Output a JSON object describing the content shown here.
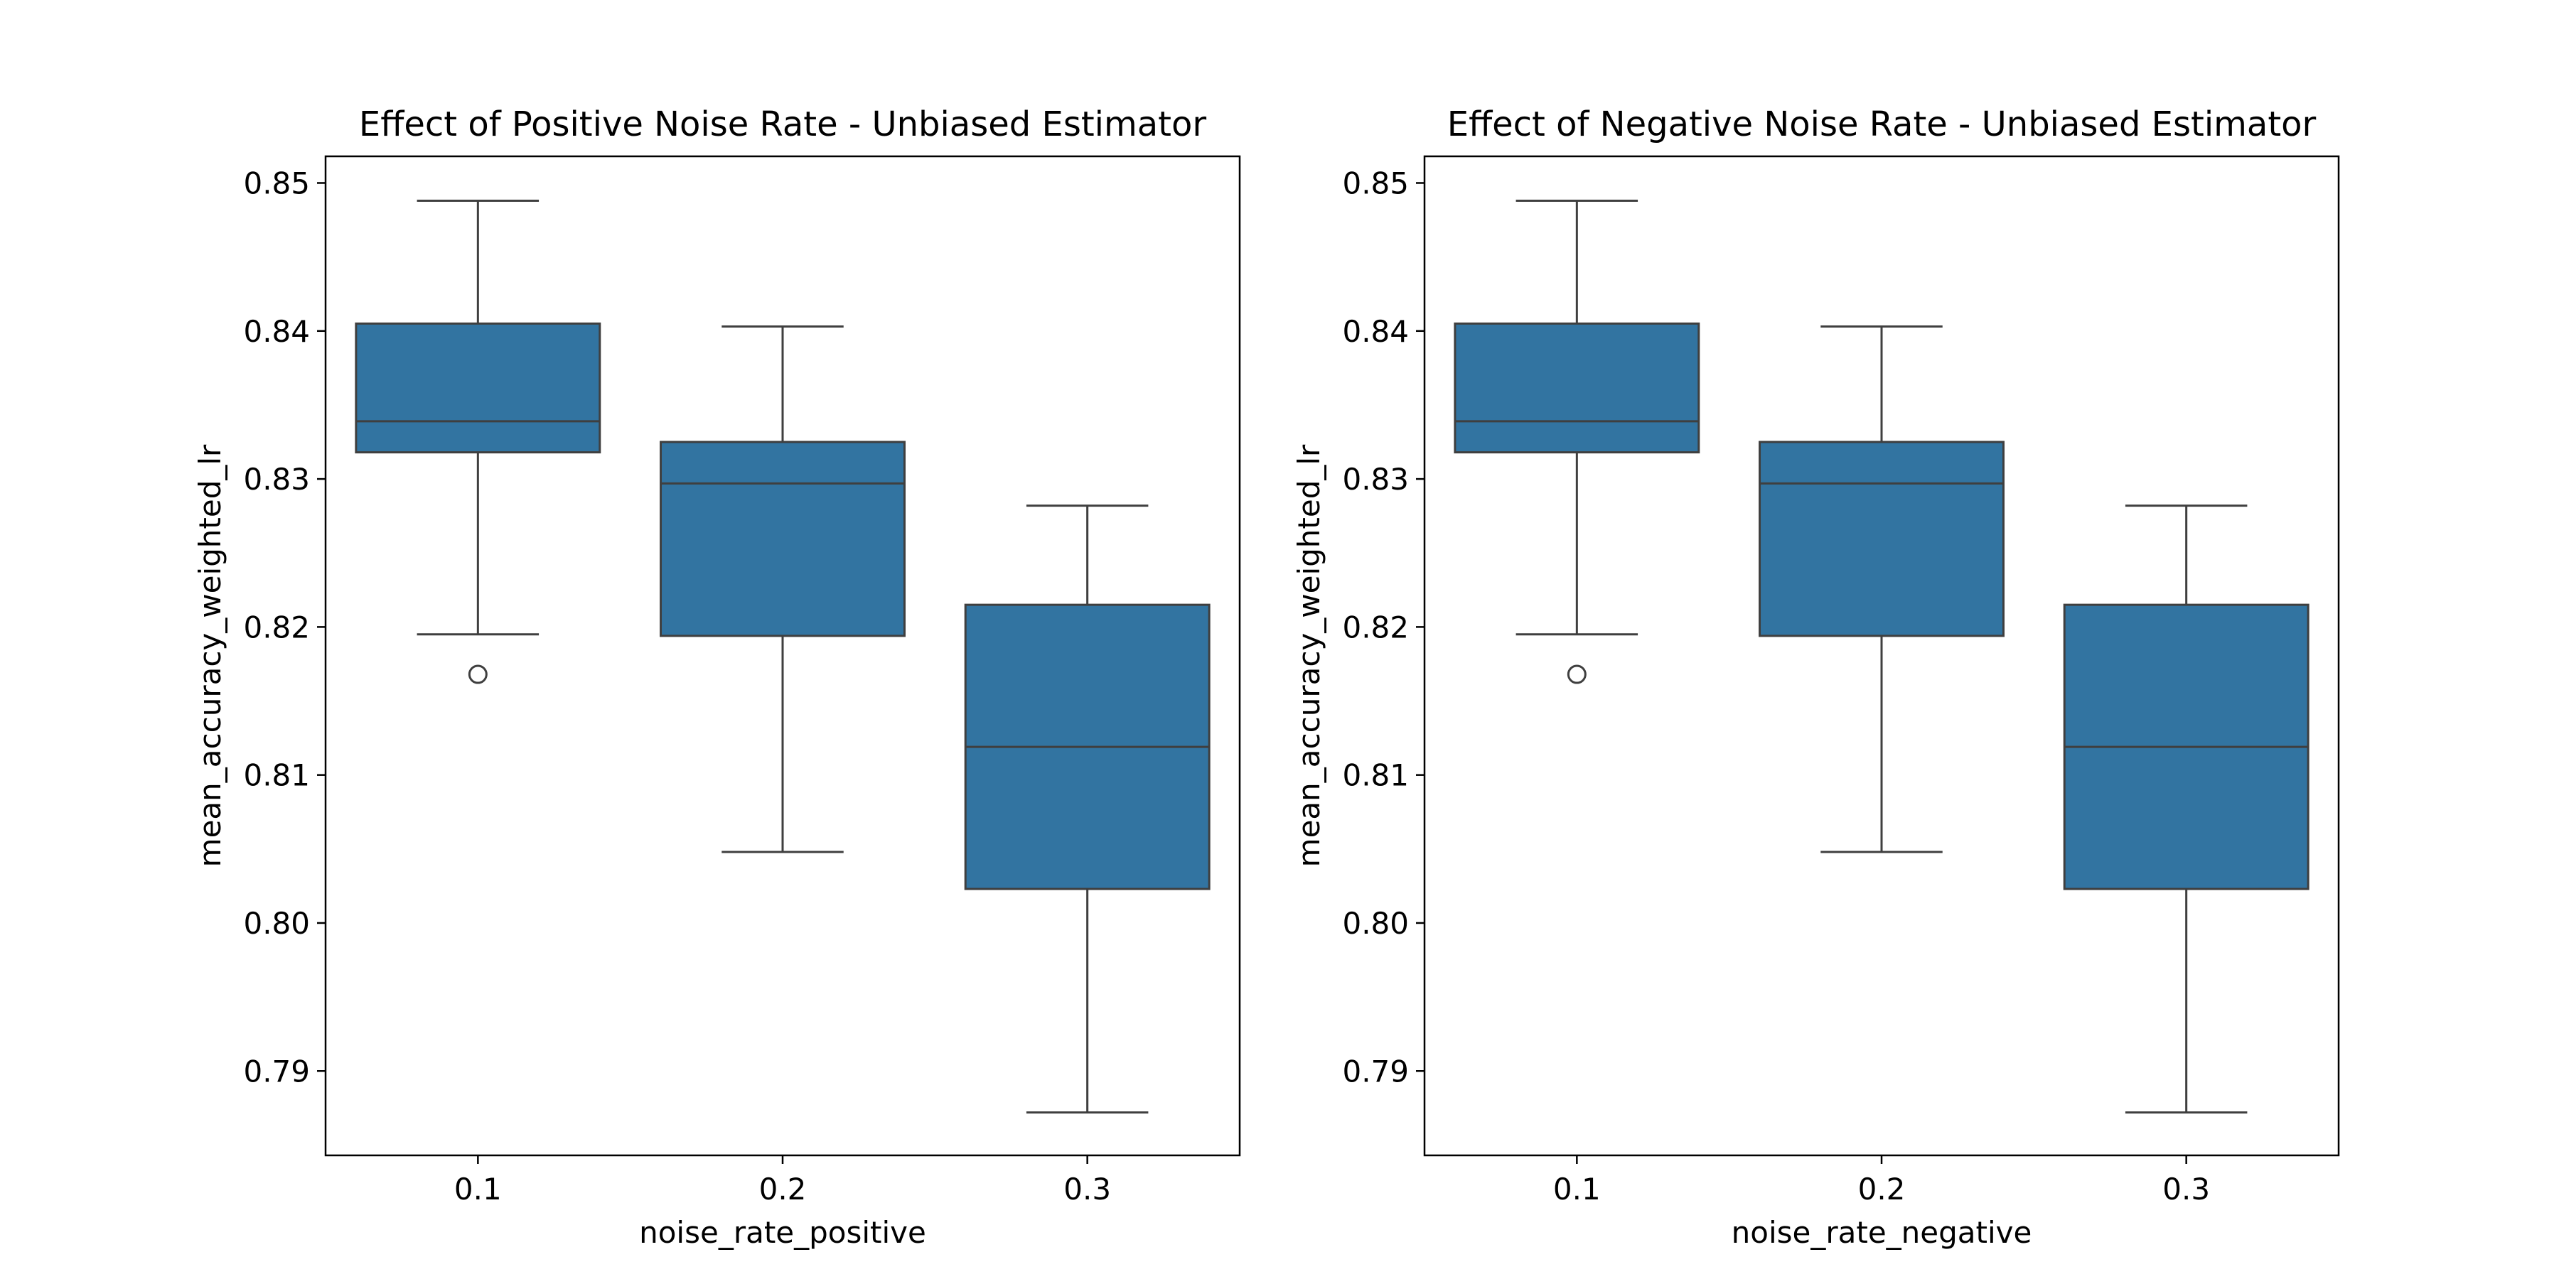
{
  "chart_data": [
    {
      "type": "box",
      "title": "Effect of Positive Noise Rate - Unbiased Estimator",
      "xlabel": "noise_rate_positive",
      "ylabel": "mean_accuracy_weighted_lr",
      "categories": [
        "0.1",
        "0.2",
        "0.3"
      ],
      "ylim": [
        0.7843,
        0.8518
      ],
      "yticks": [
        0.79,
        0.8,
        0.81,
        0.82,
        0.83,
        0.84,
        0.85
      ],
      "ytick_labels": [
        "0.79",
        "0.80",
        "0.81",
        "0.82",
        "0.83",
        "0.84",
        "0.85"
      ],
      "grid": false,
      "box_color": "#3274a1",
      "line_color": "#3f3f3f",
      "boxes": [
        {
          "category": "0.1",
          "whisker_low": 0.8195,
          "q1": 0.8318,
          "median": 0.8339,
          "q3": 0.8405,
          "whisker_high": 0.8488,
          "outliers": [
            0.8168
          ]
        },
        {
          "category": "0.2",
          "whisker_low": 0.8048,
          "q1": 0.8194,
          "median": 0.8297,
          "q3": 0.8325,
          "whisker_high": 0.8403,
          "outliers": []
        },
        {
          "category": "0.3",
          "whisker_low": 0.7872,
          "q1": 0.8023,
          "median": 0.8119,
          "q3": 0.8215,
          "whisker_high": 0.8282,
          "outliers": []
        }
      ]
    },
    {
      "type": "box",
      "title": "Effect of Negative Noise Rate - Unbiased Estimator",
      "xlabel": "noise_rate_negative",
      "ylabel": "mean_accuracy_weighted_lr",
      "categories": [
        "0.1",
        "0.2",
        "0.3"
      ],
      "ylim": [
        0.7843,
        0.8518
      ],
      "yticks": [
        0.79,
        0.8,
        0.81,
        0.82,
        0.83,
        0.84,
        0.85
      ],
      "ytick_labels": [
        "0.79",
        "0.80",
        "0.81",
        "0.82",
        "0.83",
        "0.84",
        "0.85"
      ],
      "grid": false,
      "box_color": "#3274a1",
      "line_color": "#3f3f3f",
      "boxes": [
        {
          "category": "0.1",
          "whisker_low": 0.8195,
          "q1": 0.8318,
          "median": 0.8339,
          "q3": 0.8405,
          "whisker_high": 0.8488,
          "outliers": [
            0.8168
          ]
        },
        {
          "category": "0.2",
          "whisker_low": 0.8048,
          "q1": 0.8194,
          "median": 0.8297,
          "q3": 0.8325,
          "whisker_high": 0.8403,
          "outliers": []
        },
        {
          "category": "0.3",
          "whisker_low": 0.7872,
          "q1": 0.8023,
          "median": 0.8119,
          "q3": 0.8215,
          "whisker_high": 0.8282,
          "outliers": []
        }
      ]
    }
  ]
}
